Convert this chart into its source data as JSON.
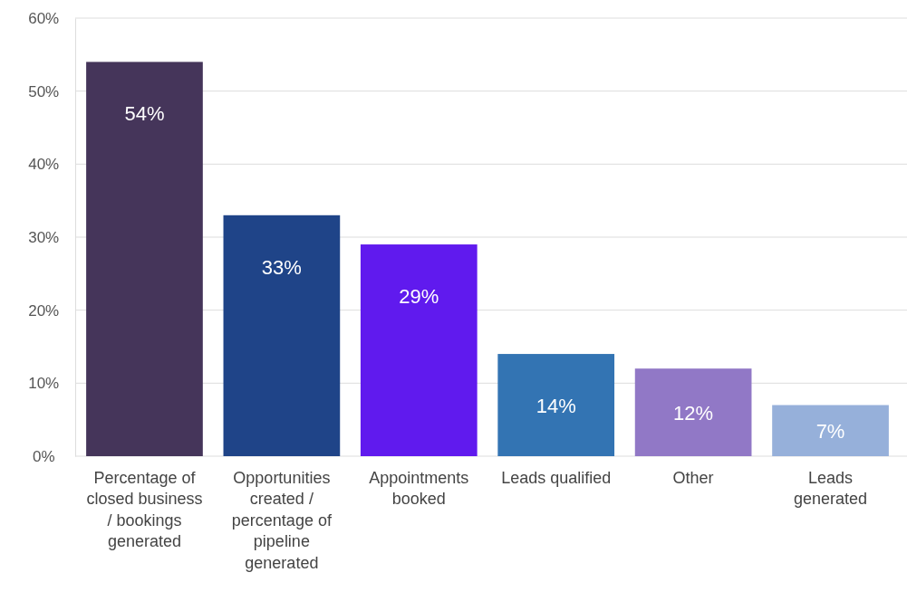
{
  "chart_data": {
    "type": "bar",
    "categories": [
      "Percentage of closed business / bookings generated",
      "Opportunities created / percentage of pipeline generated",
      "Appointments booked",
      "Leads qualified",
      "Other",
      "Leads generated"
    ],
    "values": [
      54,
      33,
      29,
      14,
      12,
      7
    ],
    "value_labels": [
      "54%",
      "33%",
      "29%",
      "14%",
      "12%",
      "7%"
    ],
    "colors": [
      "#45355a",
      "#1f4488",
      "#601aee",
      "#3374b3",
      "#9178c6",
      "#96b0da"
    ],
    "ylim": [
      0,
      60
    ],
    "yticks": [
      {
        "value": 0,
        "label": "0%"
      },
      {
        "value": 10,
        "label": "10%"
      },
      {
        "value": 20,
        "label": "20%"
      },
      {
        "value": 30,
        "label": "30%"
      },
      {
        "value": 40,
        "label": "40%"
      },
      {
        "value": 50,
        "label": "50%"
      },
      {
        "value": 60,
        "label": "60%"
      }
    ],
    "grid": "y"
  }
}
